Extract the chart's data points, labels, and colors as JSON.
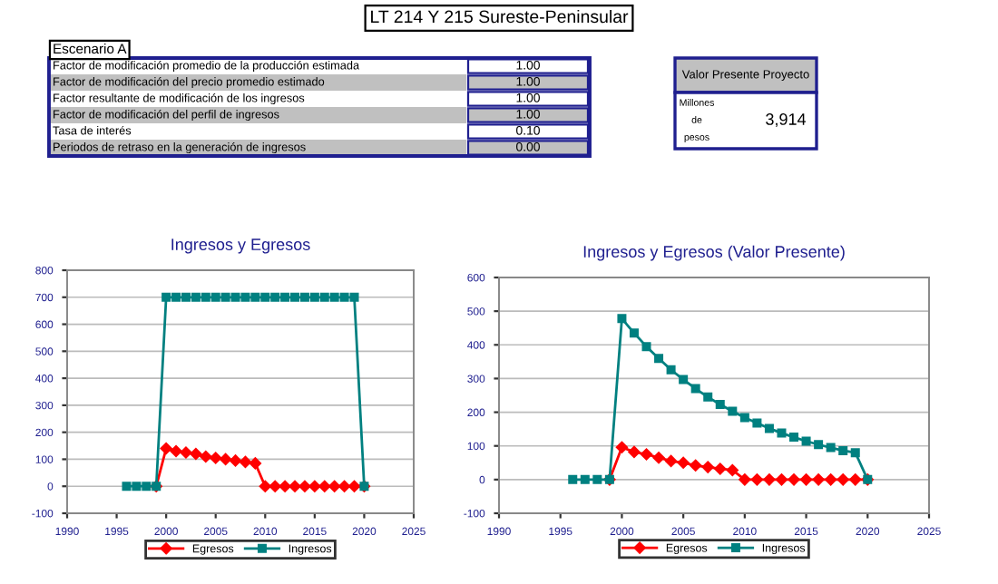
{
  "chart_data": [
    {
      "type": "other",
      "title": "LT 214 Y 215 Sureste-Peninsular",
      "annotations": [
        "Escenario A",
        "Factor de modificación promedio de la producción estimada",
        "1.00",
        "Factor de modificación del precio promedio estimado",
        "1.00",
        "Factor resultante de modificación de los ingresos",
        "1.00",
        "Factor de modificación del perfil de ingresos",
        "1.00",
        "Tasa de interés",
        "0.10",
        "Periodos de retraso en la generación de ingresos",
        "0.00",
        "Valor Presente Proyecto",
        "Millones de pesos",
        "3,914"
      ]
    },
    {
      "type": "line",
      "title": "Ingresos y Egresos",
      "x": [
        1996,
        1997,
        1998,
        1999,
        2000,
        2001,
        2002,
        2003,
        2004,
        2005,
        2006,
        2007,
        2008,
        2009,
        2010,
        2011,
        2012,
        2013,
        2014,
        2015,
        2016,
        2017,
        2018,
        2019,
        2020
      ],
      "series": [
        {
          "name": "Egresos",
          "color": "#ff0000",
          "marker": "diamond",
          "values": [
            null,
            null,
            null,
            0,
            140,
            130,
            125,
            120,
            110,
            105,
            100,
            95,
            90,
            85,
            0,
            0,
            0,
            0,
            0,
            0,
            0,
            0,
            0,
            0,
            0
          ]
        },
        {
          "name": "Ingresos",
          "color": "#008080",
          "marker": "square",
          "values": [
            0,
            0,
            0,
            0,
            700,
            700,
            700,
            700,
            700,
            700,
            700,
            700,
            700,
            700,
            700,
            700,
            700,
            700,
            700,
            700,
            700,
            700,
            700,
            700,
            0
          ]
        }
      ],
      "xlim": [
        1990,
        2025
      ],
      "xticks": [
        1990,
        1995,
        2000,
        2005,
        2010,
        2015,
        2020,
        2025
      ],
      "ylim": [
        -100,
        800
      ],
      "yticks": [
        -100,
        0,
        100,
        200,
        300,
        400,
        500,
        600,
        700,
        800
      ],
      "grid": "y",
      "legend": "bottom"
    },
    {
      "type": "line",
      "title": "Ingresos y Egresos (Valor Presente)",
      "x": [
        1996,
        1997,
        1998,
        1999,
        2000,
        2001,
        2002,
        2003,
        2004,
        2005,
        2006,
        2007,
        2008,
        2009,
        2010,
        2011,
        2012,
        2013,
        2014,
        2015,
        2016,
        2017,
        2018,
        2019,
        2020
      ],
      "series": [
        {
          "name": "Egresos",
          "color": "#ff0000",
          "marker": "diamond",
          "values": [
            null,
            null,
            null,
            0,
            96,
            82,
            75,
            65,
            55,
            50,
            42,
            37,
            32,
            28,
            0,
            0,
            0,
            0,
            0,
            0,
            0,
            0,
            0,
            0,
            0
          ]
        },
        {
          "name": "Ingresos",
          "color": "#008080",
          "marker": "square",
          "values": [
            0,
            0,
            0,
            0,
            478,
            435,
            395,
            360,
            326,
            297,
            270,
            245,
            223,
            203,
            184,
            168,
            152,
            138,
            126,
            114,
            104,
            95,
            86,
            80,
            0
          ]
        }
      ],
      "xlim": [
        1990,
        2025
      ],
      "xticks": [
        1990,
        1995,
        2000,
        2005,
        2010,
        2015,
        2020,
        2025
      ],
      "ylim": [
        -100,
        600
      ],
      "yticks": [
        -100,
        0,
        100,
        200,
        300,
        400,
        500,
        600
      ],
      "grid": "y",
      "legend": "bottom"
    }
  ]
}
